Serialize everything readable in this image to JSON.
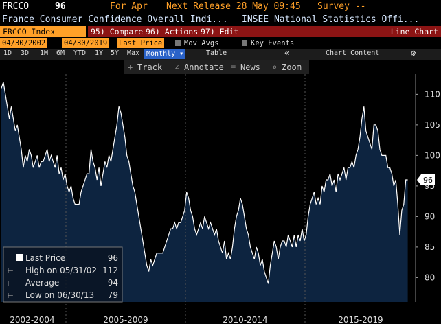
{
  "header": {
    "ticker": "FRCCO",
    "value": "96",
    "period": "For Apr",
    "next_release": "Next Release 28 May 09:45",
    "survey": "Survey --",
    "description": "France Consumer Confidence Overall Indi...",
    "source": "INSEE National Statistics Offi..."
  },
  "command_bar": {
    "security": "FRCCO Index",
    "buttons": [
      "95) Compare",
      "96) Actions ▾",
      "97) Edit ▾"
    ],
    "view": "Line Chart"
  },
  "settings": {
    "start_date": "04/30/2002",
    "end_date": "04/30/2019",
    "field": "Last Price",
    "options": [
      "Mov Avgs",
      "Key Events"
    ]
  },
  "periods": [
    "1D",
    "3D",
    "1M",
    "6M",
    "YTD",
    "1Y",
    "5Y",
    "Max"
  ],
  "frequency": "Monthly ▾",
  "table": "Table",
  "collapse": "«",
  "chart_content": "Chart Content",
  "tools": [
    "Track",
    "Annotate",
    "News",
    "Zoom"
  ],
  "chart_data": {
    "type": "line",
    "color": "#ffffff",
    "fill": "#0d2440",
    "values": [
      111,
      112,
      110,
      108,
      106,
      108,
      106,
      104,
      105,
      103,
      101,
      98,
      100,
      99,
      101,
      100,
      98,
      99,
      100,
      98,
      99,
      99,
      100,
      101,
      99,
      100,
      99,
      98,
      100,
      97,
      98,
      96,
      97,
      95,
      94,
      95,
      93,
      92,
      92,
      92,
      94,
      95,
      96,
      97,
      97,
      101,
      99,
      98,
      96,
      98,
      95,
      97,
      99,
      98,
      100,
      99,
      101,
      103,
      105,
      108,
      107,
      105,
      103,
      100,
      99,
      97,
      95,
      94,
      92,
      90,
      88,
      86,
      84,
      82,
      81,
      83,
      82,
      83,
      84,
      84,
      84,
      84,
      85,
      86,
      87,
      88,
      88,
      89,
      88,
      89,
      89,
      90,
      91,
      94,
      93,
      91,
      90,
      88,
      87,
      88,
      89,
      88,
      90,
      89,
      88,
      89,
      88,
      87,
      88,
      86,
      85,
      84,
      86,
      83,
      84,
      83,
      85,
      88,
      90,
      91,
      93,
      92,
      90,
      88,
      87,
      85,
      84,
      83,
      85,
      84,
      82,
      83,
      81,
      80,
      79,
      82,
      84,
      86,
      85,
      83,
      85,
      86,
      86,
      85,
      87,
      86,
      85,
      87,
      85,
      87,
      86,
      88,
      86,
      87,
      90,
      92,
      93,
      94,
      92,
      93,
      92,
      95,
      94,
      96,
      96,
      97,
      95,
      96,
      94,
      97,
      96,
      97,
      98,
      96,
      98,
      98,
      99,
      98,
      100,
      101,
      103,
      106,
      108,
      104,
      103,
      102,
      101,
      105,
      105,
      104,
      101,
      100,
      100,
      100,
      98,
      98,
      97,
      95,
      96,
      92,
      87,
      91,
      92,
      96,
      96
    ],
    "ylim": [
      76,
      113.3
    ],
    "yticks": [
      80,
      85,
      90,
      95,
      100,
      105,
      110
    ],
    "period_labels": [
      "2002-2004",
      "2005-2009",
      "2010-2014",
      "2015-2019"
    ],
    "legend": [
      {
        "label": "Last Price",
        "value": "96"
      },
      {
        "label": "High on 05/31/02",
        "value": "112"
      },
      {
        "label": "Average",
        "value": "94"
      },
      {
        "label": "Low on 06/30/13",
        "value": "79"
      }
    ]
  }
}
